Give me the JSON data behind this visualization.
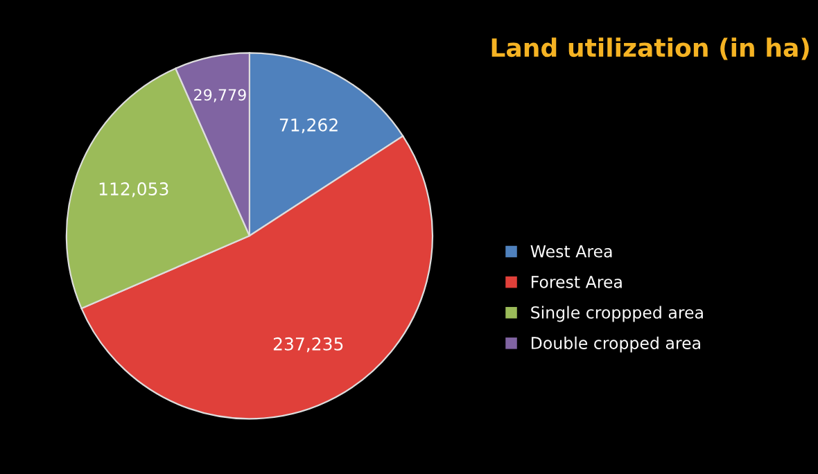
{
  "chart_data": {
    "type": "pie",
    "title": "Land utilization (in ha)",
    "categories": [
      "West Area",
      "Forest Area",
      "Single croppped area",
      "Double cropped area"
    ],
    "values": [
      71262,
      237235,
      112053,
      29779
    ],
    "value_labels": [
      "71,262",
      "237,235",
      "112,053",
      "29,779"
    ],
    "colors": [
      "#4f81bd",
      "#e0403a",
      "#9bbb59",
      "#8064a2"
    ],
    "legend": "right"
  }
}
